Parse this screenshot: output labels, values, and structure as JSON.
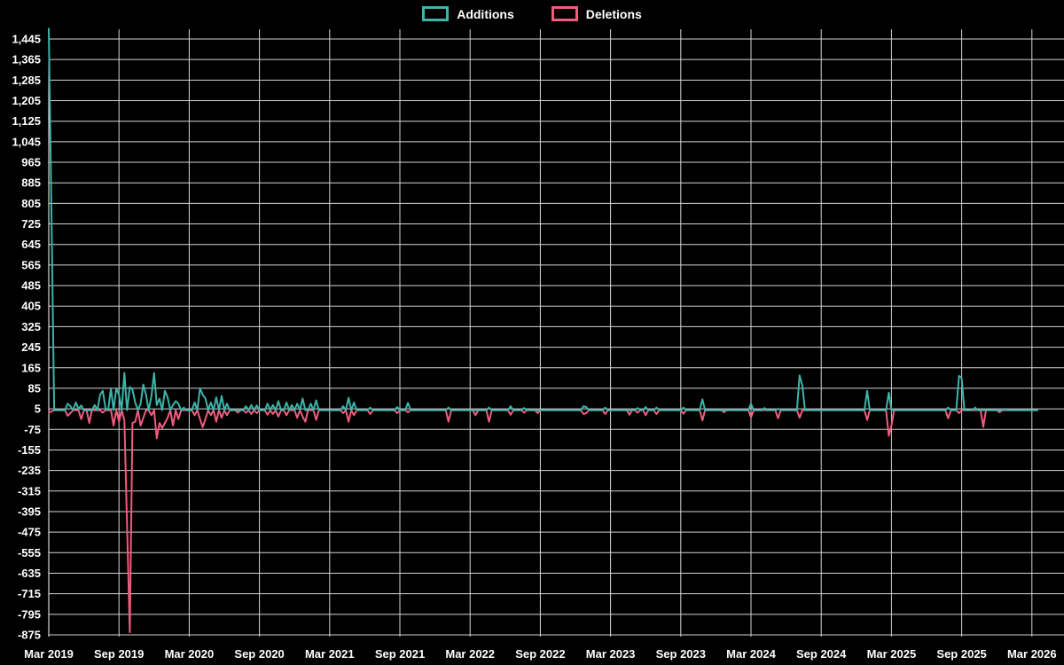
{
  "legend": {
    "additions_label": "Additions",
    "deletions_label": "Deletions"
  },
  "colors": {
    "background": "#000000",
    "additions": "#3cb4a9",
    "deletions": "#f05c7e",
    "grid": "#d4d4d4",
    "axis": "#ffffff",
    "text": "#ffffff"
  },
  "chart_data": {
    "type": "line",
    "title": "",
    "xlabel": "",
    "ylabel": "",
    "legend_position": "top-center",
    "grid": true,
    "x_tick_labels": [
      "Mar 2019",
      "Sep 2019",
      "Mar 2020",
      "Sep 2020",
      "Mar 2021",
      "Sep 2021",
      "Mar 2022",
      "Sep 2022",
      "Mar 2023",
      "Sep 2023",
      "Mar 2024",
      "Sep 2024",
      "Mar 2025",
      "Sep 2025",
      "Mar 2026"
    ],
    "weeks_per_tick": 26,
    "total_weeks": 366,
    "y_axis": {
      "max": 1445,
      "min": -875,
      "step": 80,
      "baseline": 0
    },
    "series": [
      {
        "name": "Deletions",
        "color_key": "deletions",
        "default": 0,
        "points": [
          [
            0,
            -10
          ],
          [
            1,
            -5
          ],
          [
            7,
            -22
          ],
          [
            8,
            -12
          ],
          [
            12,
            -35
          ],
          [
            15,
            -50
          ],
          [
            20,
            -10
          ],
          [
            24,
            -60
          ],
          [
            26,
            -45
          ],
          [
            28,
            -40
          ],
          [
            29,
            -450
          ],
          [
            30,
            -865
          ],
          [
            31,
            -50
          ],
          [
            32,
            -45
          ],
          [
            34,
            -60
          ],
          [
            35,
            -30
          ],
          [
            38,
            -20
          ],
          [
            40,
            -110
          ],
          [
            41,
            -50
          ],
          [
            42,
            -70
          ],
          [
            43,
            -50
          ],
          [
            44,
            -30
          ],
          [
            46,
            -60
          ],
          [
            48,
            -35
          ],
          [
            54,
            -20
          ],
          [
            56,
            -35
          ],
          [
            57,
            -66
          ],
          [
            58,
            -35
          ],
          [
            60,
            -20
          ],
          [
            62,
            -45
          ],
          [
            64,
            -30
          ],
          [
            66,
            -20
          ],
          [
            70,
            -10
          ],
          [
            73,
            -10
          ],
          [
            75,
            -15
          ],
          [
            77,
            -12
          ],
          [
            81,
            -18
          ],
          [
            83,
            -15
          ],
          [
            85,
            -25
          ],
          [
            88,
            -20
          ],
          [
            92,
            -30
          ],
          [
            94,
            -25
          ],
          [
            95,
            -45
          ],
          [
            99,
            -38
          ],
          [
            109,
            -12
          ],
          [
            111,
            -45
          ],
          [
            113,
            -20
          ],
          [
            119,
            -15
          ],
          [
            129,
            -12
          ],
          [
            133,
            -8
          ],
          [
            148,
            -45
          ],
          [
            158,
            -20
          ],
          [
            163,
            -45
          ],
          [
            171,
            -18
          ],
          [
            176,
            -10
          ],
          [
            181,
            -12
          ],
          [
            198,
            -15
          ],
          [
            199,
            -12
          ],
          [
            206,
            -15
          ],
          [
            215,
            -18
          ],
          [
            218,
            -10
          ],
          [
            221,
            -20
          ],
          [
            225,
            -15
          ],
          [
            235,
            -14
          ],
          [
            242,
            -40
          ],
          [
            250,
            -8
          ],
          [
            260,
            -28
          ],
          [
            270,
            -32
          ],
          [
            278,
            -30
          ],
          [
            303,
            -38
          ],
          [
            311,
            -100
          ],
          [
            312,
            -60
          ],
          [
            333,
            -32
          ],
          [
            337,
            -12
          ],
          [
            346,
            -65
          ],
          [
            352,
            -8
          ]
        ]
      },
      {
        "name": "Additions",
        "color_key": "additions",
        "default": 0,
        "points": [
          [
            0,
            1485
          ],
          [
            1,
            785
          ],
          [
            2,
            0
          ],
          [
            7,
            25
          ],
          [
            8,
            15
          ],
          [
            10,
            30
          ],
          [
            11,
            5
          ],
          [
            12,
            18
          ],
          [
            17,
            20
          ],
          [
            19,
            60
          ],
          [
            20,
            75
          ],
          [
            21,
            8
          ],
          [
            23,
            85
          ],
          [
            25,
            85
          ],
          [
            26,
            60
          ],
          [
            28,
            145
          ],
          [
            30,
            90
          ],
          [
            31,
            80
          ],
          [
            32,
            30
          ],
          [
            34,
            25
          ],
          [
            35,
            100
          ],
          [
            36,
            60
          ],
          [
            38,
            55
          ],
          [
            39,
            145
          ],
          [
            40,
            20
          ],
          [
            41,
            45
          ],
          [
            43,
            75
          ],
          [
            44,
            50
          ],
          [
            46,
            20
          ],
          [
            47,
            35
          ],
          [
            48,
            25
          ],
          [
            50,
            10
          ],
          [
            54,
            30
          ],
          [
            56,
            85
          ],
          [
            57,
            60
          ],
          [
            58,
            45
          ],
          [
            60,
            30
          ],
          [
            62,
            50
          ],
          [
            64,
            55
          ],
          [
            66,
            25
          ],
          [
            73,
            15
          ],
          [
            75,
            20
          ],
          [
            77,
            18
          ],
          [
            81,
            25
          ],
          [
            83,
            20
          ],
          [
            85,
            35
          ],
          [
            88,
            30
          ],
          [
            90,
            20
          ],
          [
            92,
            25
          ],
          [
            94,
            45
          ],
          [
            97,
            25
          ],
          [
            99,
            38
          ],
          [
            109,
            15
          ],
          [
            111,
            48
          ],
          [
            113,
            30
          ],
          [
            119,
            10
          ],
          [
            129,
            12
          ],
          [
            133,
            28
          ],
          [
            148,
            10
          ],
          [
            163,
            10
          ],
          [
            171,
            15
          ],
          [
            176,
            8
          ],
          [
            198,
            15
          ],
          [
            199,
            12
          ],
          [
            206,
            10
          ],
          [
            218,
            8
          ],
          [
            221,
            12
          ],
          [
            225,
            10
          ],
          [
            235,
            10
          ],
          [
            242,
            42
          ],
          [
            260,
            25
          ],
          [
            265,
            8
          ],
          [
            270,
            5
          ],
          [
            278,
            135
          ],
          [
            279,
            95
          ],
          [
            303,
            75
          ],
          [
            311,
            68
          ],
          [
            333,
            10
          ],
          [
            337,
            133
          ],
          [
            338,
            125
          ],
          [
            343,
            10
          ],
          [
            354,
            5
          ]
        ]
      }
    ]
  }
}
